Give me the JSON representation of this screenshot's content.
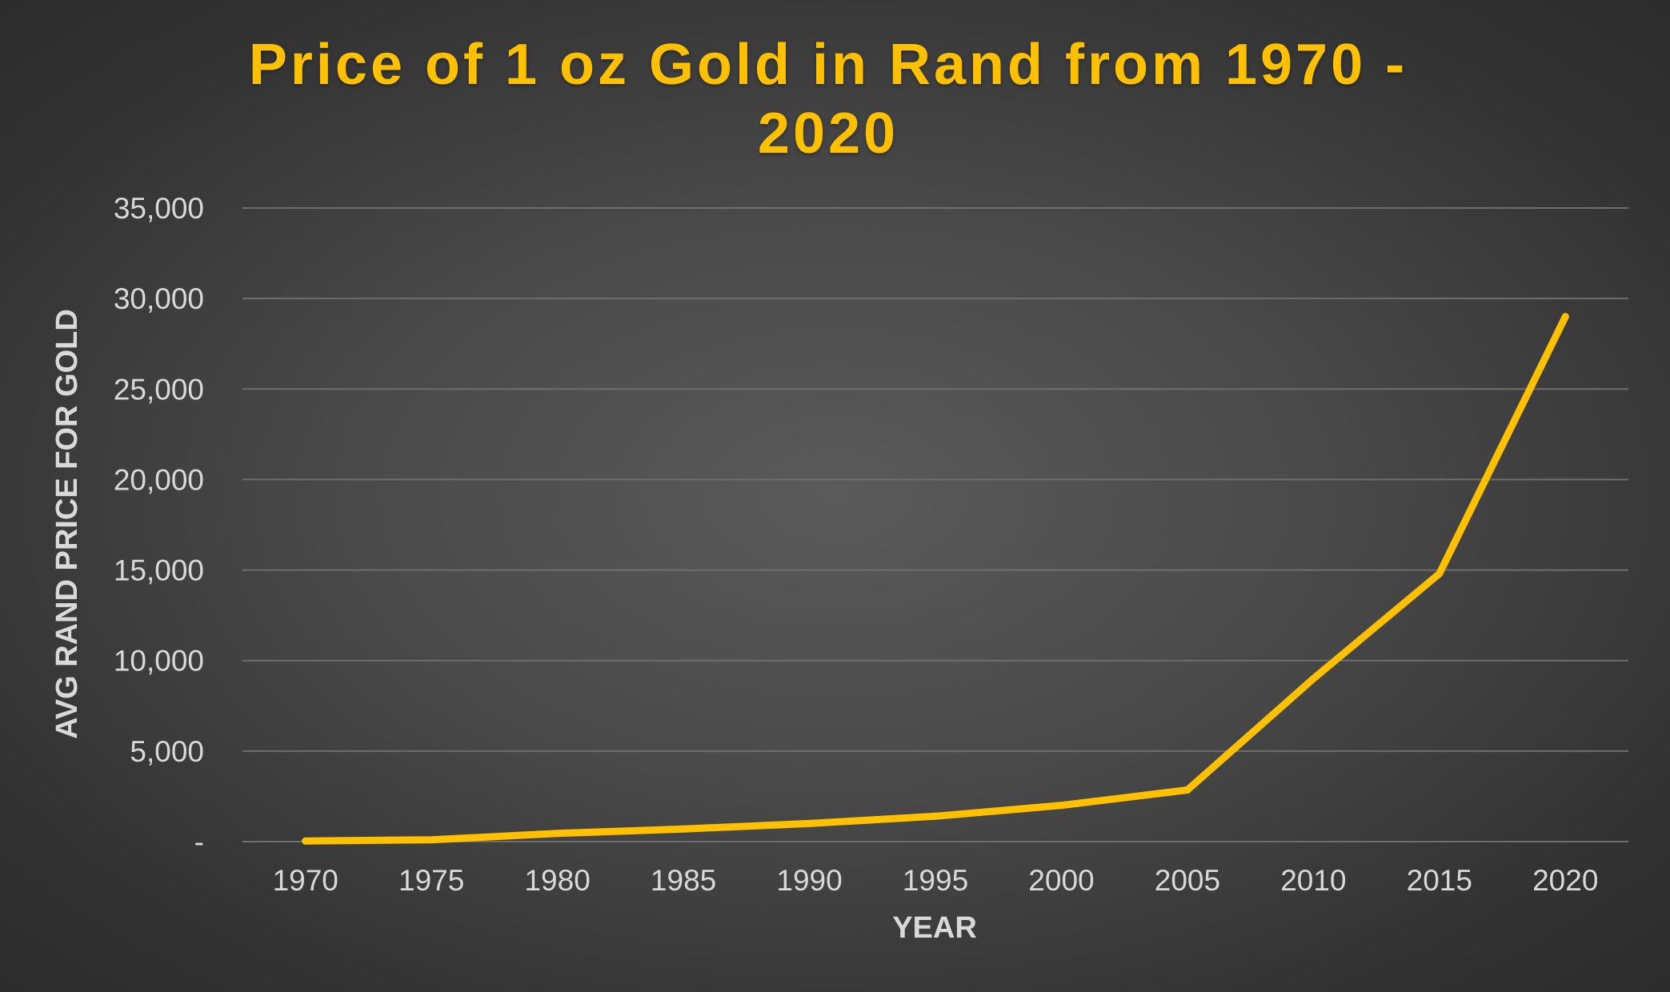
{
  "chart_data": {
    "type": "line",
    "title": "Price of 1 oz Gold in Rand from 1970 - 2020",
    "xlabel": "YEAR",
    "ylabel": "AVG RAND PRICE FOR GOLD",
    "categories": [
      "1970",
      "1975",
      "1980",
      "1985",
      "1990",
      "1995",
      "2000",
      "2005",
      "2010",
      "2015",
      "2020"
    ],
    "series": [
      {
        "values": [
          30,
          100,
          450,
          700,
          1000,
          1400,
          2000,
          2850,
          9000,
          14800,
          29000
        ]
      }
    ],
    "ylim": [
      0,
      35000
    ],
    "yticks": [
      0,
      5000,
      10000,
      15000,
      20000,
      25000,
      30000,
      35000
    ],
    "ytick_labels": [
      "-",
      "5,000",
      "10,000",
      "15,000",
      "20,000",
      "25,000",
      "30,000",
      "35,000"
    ],
    "grid": true,
    "legend": "none",
    "colors": {
      "line": "#FFC000",
      "title": "#FFC000",
      "axis_text": "#D9D9D9",
      "gridline": "#6E6E6E",
      "background": "#474747"
    }
  }
}
